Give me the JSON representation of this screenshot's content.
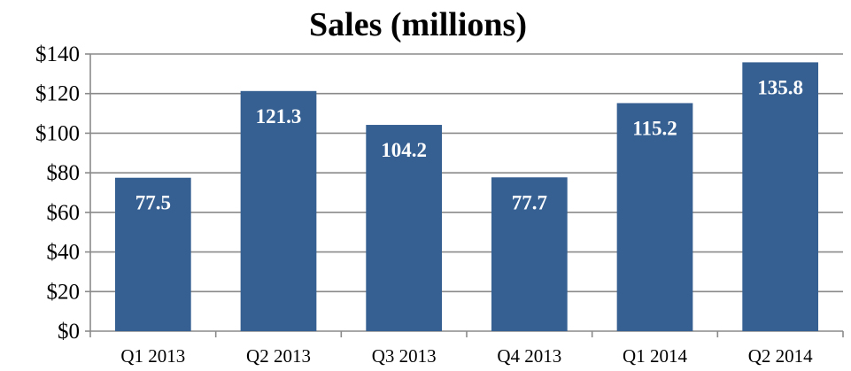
{
  "chart_data": {
    "type": "bar",
    "title": "Sales (millions)",
    "categories": [
      "Q1 2013",
      "Q2 2013",
      "Q3 2013",
      "Q4 2013",
      "Q1 2014",
      "Q2 2014"
    ],
    "values": [
      77.5,
      121.3,
      104.2,
      77.7,
      115.2,
      135.8
    ],
    "data_labels": [
      "77.5",
      "121.3",
      "104.2",
      "77.7",
      "115.2",
      "135.8"
    ],
    "ylim": [
      0,
      140
    ],
    "yticks": [
      0,
      20,
      40,
      60,
      80,
      100,
      120,
      140
    ],
    "ytick_labels": [
      "$0",
      "$20",
      "$40",
      "$60",
      "$80",
      "$100",
      "$120",
      "$140"
    ],
    "xlabel": "",
    "ylabel": "",
    "grid": true,
    "legend": "none",
    "bar_color": "#376092",
    "grid_color": "#8a8a8a",
    "label_color": "#ffffff"
  }
}
